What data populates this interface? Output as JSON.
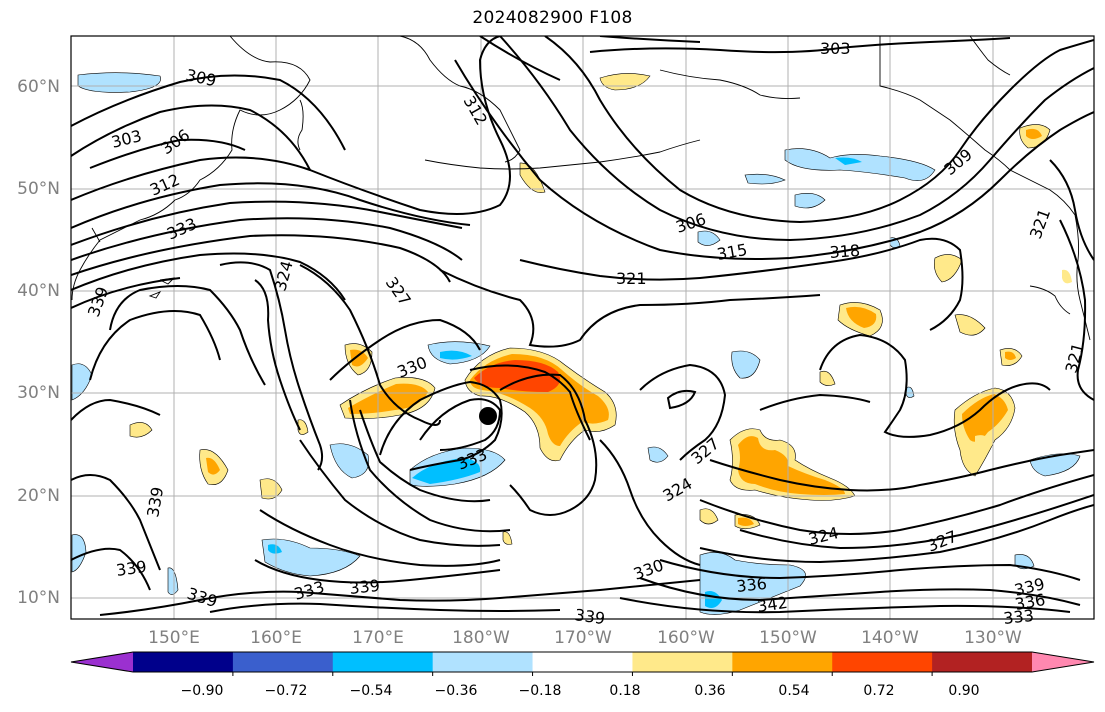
{
  "title": "2024082900 F108",
  "lat_labels": [
    "60°N",
    "50°N",
    "40°N",
    "30°N",
    "20°N",
    "10°N"
  ],
  "lon_labels": [
    "150°E",
    "160°E",
    "170°E",
    "180°W",
    "170°W",
    "160°W",
    "150°W",
    "140°W",
    "130°W"
  ],
  "colorbar": {
    "ticks": [
      "−0.90",
      "−0.72",
      "−0.54",
      "−0.36",
      "−0.18",
      "0.18",
      "0.36",
      "0.54",
      "0.72",
      "0.90"
    ],
    "colors": [
      "#9b30d0",
      "#00008b",
      "#3a5fcd",
      "#00bfff",
      "#b0e2ff",
      "#ffffff",
      "#ffe98a",
      "#ffa500",
      "#ff4500",
      "#b22222",
      "#ff88b0"
    ]
  },
  "contour_labels": [
    "303",
    "309",
    "312",
    "303",
    "306",
    "312",
    "333",
    "306",
    "315",
    "318",
    "321",
    "324",
    "327",
    "330",
    "333",
    "327",
    "324",
    "339",
    "339",
    "339",
    "339",
    "333",
    "339",
    "330",
    "336",
    "342",
    "339",
    "324",
    "327",
    "339",
    "336",
    "333",
    "309",
    "321",
    "321"
  ],
  "storm_marker": "black-dot"
}
